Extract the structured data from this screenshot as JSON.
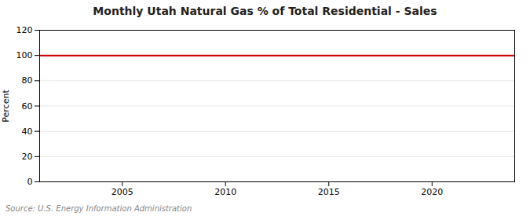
{
  "chart_data": {
    "type": "line",
    "title": "Monthly Utah Natural Gas % of Total Residential - Sales",
    "ylabel": "Percent",
    "source": "Source: U.S. Energy Information Administration",
    "x": [
      2001.0,
      2024.0
    ],
    "values": [
      100.0,
      100.0
    ],
    "color": "#cc0000",
    "xlim": [
      2001.0,
      2024.0
    ],
    "xticks": [
      2005,
      2010,
      2015,
      2020
    ],
    "ylim": [
      0,
      120
    ],
    "yticks": [
      0,
      20,
      40,
      60,
      80,
      100,
      120
    ],
    "grid": true
  }
}
